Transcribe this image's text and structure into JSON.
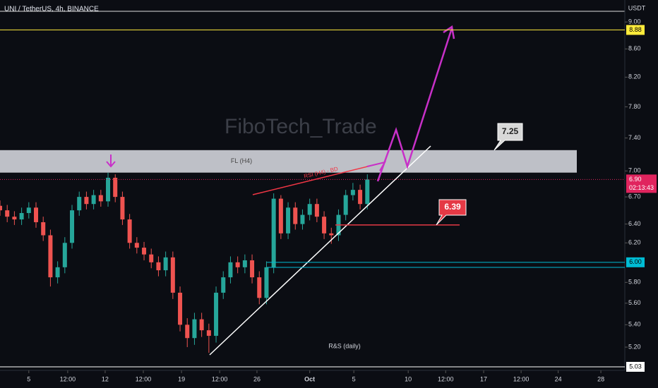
{
  "chart_data": {
    "type": "candlestick",
    "title": "UNI / TetherUS, 4h, BINANCE",
    "watermark": "FiboTech_Trade",
    "currency": "USDT",
    "log_scale": true,
    "ylim": [
      5.0,
      9.34
    ],
    "yticks": [
      {
        "value": 9,
        "label": "9.00"
      },
      {
        "value": 8.6,
        "label": "8.60"
      },
      {
        "value": 8.2,
        "label": "8.20"
      },
      {
        "value": 7.8,
        "label": "7.80"
      },
      {
        "value": 7.4,
        "label": "7.40"
      },
      {
        "value": 7,
        "label": "7.00"
      },
      {
        "value": 6.7,
        "label": "6.70"
      },
      {
        "value": 6.4,
        "label": "6.40"
      },
      {
        "value": 6.2,
        "label": "6.20"
      },
      {
        "value": 5.8,
        "label": "5.80"
      },
      {
        "value": 5.6,
        "label": "5.60"
      },
      {
        "value": 5.4,
        "label": "5.40"
      },
      {
        "value": 5.2,
        "label": "5.20"
      }
    ],
    "xlim": [
      0,
      347
    ],
    "xticks": [
      {
        "value": 16,
        "label": "5"
      },
      {
        "value": 37.6,
        "label": "12:00"
      },
      {
        "value": 58.4,
        "label": "12"
      },
      {
        "value": 79.6,
        "label": "12:00"
      },
      {
        "value": 100.8,
        "label": "19"
      },
      {
        "value": 122,
        "label": "12:00"
      },
      {
        "value": 142.7,
        "label": "26"
      },
      {
        "value": 172,
        "label": "Oct"
      },
      {
        "value": 196.5,
        "label": "5"
      },
      {
        "value": 226.7,
        "label": "10"
      },
      {
        "value": 247.5,
        "label": "12:00"
      },
      {
        "value": 268.6,
        "label": "17"
      },
      {
        "value": 289.4,
        "label": "12:00"
      },
      {
        "value": 310,
        "label": "24"
      },
      {
        "value": 333.7,
        "label": "28"
      }
    ],
    "x": [
      0,
      4,
      8,
      12,
      16,
      20,
      24,
      28,
      32,
      36,
      40,
      44,
      48,
      52,
      56,
      60,
      64,
      68,
      72,
      76,
      80,
      84,
      88,
      92,
      96,
      100,
      104,
      108,
      112,
      116,
      120,
      124,
      128,
      132,
      136,
      140,
      144,
      148,
      152,
      156,
      160,
      164,
      168,
      172,
      176,
      180,
      184,
      188,
      192,
      196,
      200,
      204
    ],
    "open": [
      6.6,
      6.55,
      6.48,
      6.45,
      6.52,
      6.58,
      6.42,
      6.28,
      5.85,
      5.95,
      6.2,
      6.55,
      6.7,
      6.62,
      6.72,
      6.65,
      6.92,
      6.7,
      6.45,
      6.2,
      6.15,
      6.08,
      6.0,
      5.92,
      6.05,
      5.7,
      5.4,
      5.28,
      5.45,
      5.35,
      5.3,
      5.7,
      5.85,
      6.0,
      5.95,
      6.02,
      5.85,
      5.65,
      5.95,
      6.68,
      6.3,
      6.58,
      6.4,
      6.5,
      6.62,
      6.48,
      6.3,
      6.28,
      6.5,
      6.72,
      6.78,
      6.62
    ],
    "high": [
      6.66,
      6.61,
      6.54,
      6.58,
      6.64,
      6.64,
      6.48,
      6.34,
      6.01,
      6.26,
      6.61,
      6.76,
      6.76,
      6.78,
      6.78,
      6.98,
      6.96,
      6.76,
      6.51,
      6.26,
      6.21,
      6.14,
      6.06,
      6.11,
      6.11,
      5.76,
      5.46,
      5.51,
      5.51,
      5.41,
      5.76,
      5.91,
      6.06,
      6.06,
      6.08,
      6.08,
      5.91,
      6.01,
      6.74,
      6.72,
      6.64,
      6.64,
      6.56,
      6.68,
      6.68,
      6.54,
      6.36,
      6.56,
      6.78,
      6.86,
      6.84,
      6.96
    ],
    "low": [
      6.49,
      6.42,
      6.39,
      6.39,
      6.46,
      6.36,
      6.22,
      5.76,
      5.79,
      5.89,
      6.14,
      6.49,
      6.56,
      6.56,
      6.59,
      6.59,
      6.64,
      6.39,
      6.14,
      6.09,
      6.02,
      5.94,
      5.86,
      5.86,
      5.64,
      5.34,
      5.2,
      5.22,
      5.29,
      5.15,
      5.24,
      5.64,
      5.79,
      5.89,
      5.89,
      5.79,
      5.59,
      5.59,
      5.89,
      6.24,
      6.24,
      6.34,
      6.34,
      6.44,
      6.42,
      6.24,
      6.19,
      6.22,
      6.44,
      6.66,
      6.56,
      6.56
    ],
    "close": [
      6.55,
      6.48,
      6.45,
      6.52,
      6.58,
      6.42,
      6.28,
      5.85,
      5.95,
      6.2,
      6.55,
      6.7,
      6.62,
      6.72,
      6.65,
      6.92,
      6.7,
      6.45,
      6.2,
      6.15,
      6.08,
      6.0,
      5.92,
      6.05,
      5.7,
      5.4,
      5.28,
      5.45,
      5.35,
      5.3,
      5.7,
      5.85,
      6.0,
      5.95,
      6.02,
      5.85,
      5.65,
      5.95,
      6.68,
      6.3,
      6.58,
      6.4,
      6.5,
      6.62,
      6.48,
      6.3,
      6.28,
      6.5,
      6.72,
      6.78,
      6.62,
      6.9
    ],
    "up_color": "#26a69a",
    "down_color": "#ef5350",
    "zone": {
      "label": "FL (H4)",
      "range": [
        6.98,
        7.25
      ]
    },
    "annotations": [
      "RSI (H4) - BD",
      "R&S (daily)"
    ],
    "callouts": [
      {
        "value": 7.25,
        "color": "#d8d8d8"
      },
      {
        "value": 6.39,
        "color": "#e53945"
      }
    ],
    "levels": [
      {
        "value": 8.88,
        "label": "8.88",
        "color": "#ffeb3b"
      },
      {
        "value": 6.0,
        "label": "6.00",
        "color": "#00bcd4"
      },
      {
        "value": 5.03,
        "label": "5.03",
        "color": "#ffffff"
      }
    ],
    "last_price": {
      "value": 6.9,
      "label": "6.90",
      "countdown": "02:13:43",
      "color": "#e0245e"
    }
  }
}
